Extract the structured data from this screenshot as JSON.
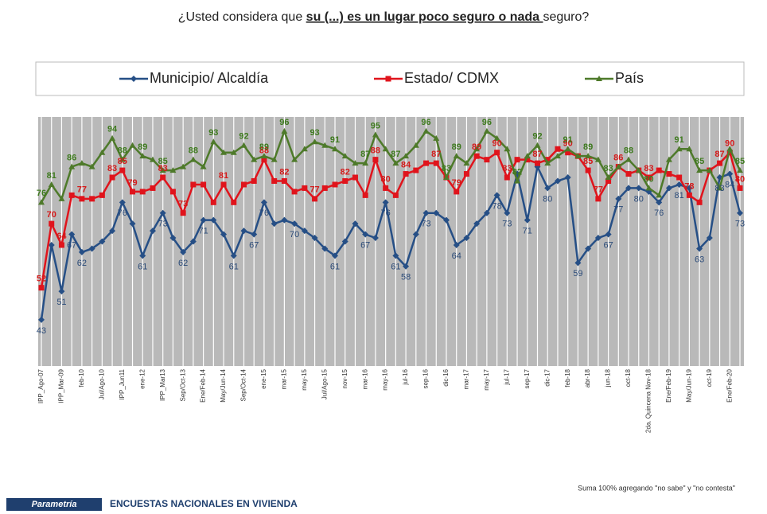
{
  "chart_data": {
    "type": "line",
    "title_parts": [
      "¿Usted considera que ",
      "su (...) es un lugar poco seguro o nada ",
      "seguro?"
    ],
    "categories": [
      "IPP_Ago-07",
      null,
      "IPP_Mar-09",
      null,
      "feb-10",
      null,
      "Jul/Ago-10",
      null,
      "IPP_Jun11",
      null,
      "ene-12",
      null,
      "IPP_Mar13",
      null,
      "Sep/Oct-13",
      null,
      "Ene/Feb-14",
      null,
      "May/Jun-14",
      null,
      "Sep/Oct-14",
      null,
      "ene-15",
      null,
      "mar-15",
      null,
      "may-15",
      null,
      "Jul/Ago-15",
      null,
      "nov-15",
      null,
      "mar-16",
      null,
      "may-16",
      null,
      "jul-16",
      null,
      "sep-16",
      null,
      "dic-16",
      null,
      "mar-17",
      null,
      "may-17",
      null,
      "jul-17",
      null,
      "sep-17",
      null,
      "dic-17",
      null,
      "feb-18",
      null,
      "abr-18",
      null,
      "jun-18",
      null,
      "oct-18",
      null,
      "2da. Quincena Nov-18",
      null,
      "Ene/Feb-19",
      null,
      "May/Jun-19",
      null,
      "oct-19",
      null,
      "Ene/Feb-20",
      null
    ],
    "ylim": [
      30,
      100
    ],
    "series": [
      {
        "name": "Municipio/ Alcaldía",
        "color": "#264f86",
        "label_color": "#2a4a78",
        "marker": "diamond",
        "values": [
          43,
          64,
          51,
          67,
          62,
          63,
          65,
          68,
          76,
          70,
          61,
          68,
          73,
          66,
          62,
          65,
          71,
          71,
          67,
          61,
          68,
          67,
          76,
          70,
          71,
          70,
          68,
          66,
          63,
          61,
          65,
          70,
          67,
          66,
          76,
          61,
          58,
          67,
          73,
          73,
          71,
          64,
          66,
          70,
          73,
          78,
          73,
          84,
          71,
          86,
          80,
          82,
          83,
          59,
          63,
          66,
          67,
          77,
          80,
          80,
          79,
          76,
          80,
          81,
          80,
          63,
          66,
          83,
          84,
          73
        ],
        "value_labels": [
          "43",
          null,
          "51",
          "67",
          "62",
          null,
          null,
          null,
          "76",
          null,
          "61",
          null,
          "73",
          null,
          "62",
          null,
          "71",
          null,
          null,
          "61",
          null,
          "67",
          "76",
          null,
          null,
          "70",
          null,
          null,
          null,
          "61",
          null,
          null,
          "67",
          null,
          "76",
          "61",
          "58",
          null,
          "73",
          null,
          null,
          "64",
          null,
          null,
          null,
          "78",
          "73",
          null,
          "71",
          null,
          "80",
          null,
          null,
          "59",
          null,
          null,
          "67",
          "77",
          null,
          "80",
          null,
          "76",
          null,
          "81",
          null,
          "63",
          null,
          "83",
          "84",
          "73"
        ]
      },
      {
        "name": "Estado/ CDMX",
        "color": "#e0141c",
        "label_color": "#d41a1a",
        "marker": "square",
        "values": [
          52,
          70,
          64,
          78,
          77,
          77,
          78,
          83,
          85,
          79,
          79,
          80,
          83,
          79,
          73,
          81,
          81,
          76,
          81,
          76,
          81,
          82,
          88,
          82,
          82,
          79,
          80,
          77,
          80,
          81,
          82,
          83,
          78,
          88,
          80,
          78,
          84,
          85,
          87,
          87,
          83,
          79,
          84,
          89,
          88,
          90,
          83,
          88,
          88,
          87,
          88,
          91,
          90,
          89,
          85,
          77,
          82,
          86,
          84,
          85,
          83,
          85,
          84,
          83,
          78,
          76,
          85,
          87,
          90,
          80
        ],
        "value_labels": [
          "52",
          "70",
          "64",
          null,
          "77",
          null,
          null,
          "83",
          "85",
          "79",
          null,
          null,
          "83",
          null,
          "73",
          null,
          null,
          null,
          "81",
          null,
          null,
          null,
          "88",
          null,
          "82",
          null,
          null,
          "77",
          null,
          null,
          "82",
          null,
          null,
          "88",
          "80",
          null,
          "84",
          null,
          null,
          "87",
          null,
          "79",
          null,
          "89",
          null,
          "90",
          "83",
          null,
          null,
          "87",
          null,
          null,
          "90",
          null,
          "85",
          "77",
          null,
          "86",
          null,
          null,
          "83",
          null,
          null,
          null,
          "78",
          null,
          null,
          "87",
          "90",
          "80"
        ]
      },
      {
        "name": "País",
        "color": "#4e7a2a",
        "label_color": "#3e7a1e",
        "marker": "triangle",
        "values": [
          76,
          81,
          77,
          86,
          87,
          86,
          90,
          94,
          88,
          92,
          89,
          88,
          85,
          85,
          86,
          88,
          86,
          93,
          90,
          90,
          92,
          88,
          89,
          88,
          96,
          88,
          91,
          93,
          92,
          91,
          89,
          87,
          87,
          95,
          91,
          87,
          89,
          92,
          96,
          94,
          83,
          89,
          87,
          91,
          96,
          94,
          91,
          82,
          89,
          92,
          87,
          89,
          91,
          89,
          89,
          88,
          83,
          86,
          88,
          85,
          80,
          78,
          88,
          91,
          91,
          85,
          85,
          80,
          91,
          85
        ],
        "value_labels": [
          "76",
          "81",
          null,
          "86",
          null,
          null,
          null,
          "94",
          "88",
          null,
          "89",
          null,
          "85",
          null,
          null,
          "88",
          null,
          "93",
          null,
          null,
          "92",
          null,
          "89",
          null,
          "96",
          null,
          null,
          "93",
          null,
          "91",
          null,
          null,
          "87",
          "95",
          null,
          "87",
          null,
          null,
          "96",
          null,
          "83",
          "89",
          null,
          null,
          "96",
          null,
          null,
          "82",
          null,
          "92",
          null,
          null,
          "91",
          null,
          "89",
          null,
          "83",
          null,
          "88",
          null,
          "80",
          null,
          null,
          "91",
          null,
          "85",
          null,
          null,
          null,
          "85"
        ]
      }
    ]
  },
  "footnote": "Suma 100% agregando \"no sabe\" y \"no contesta\"",
  "brand": "Parametría",
  "footer": "ENCUESTAS NACIONALES EN VIVIENDA"
}
